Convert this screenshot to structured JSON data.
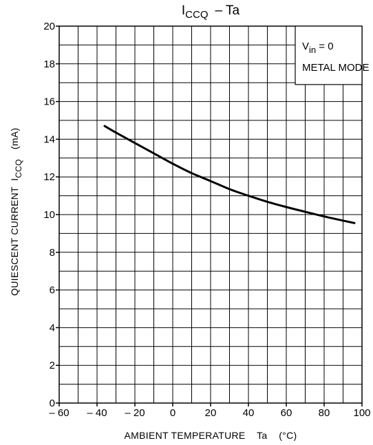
{
  "chart_data": {
    "type": "line",
    "title": "ICCQ – Ta",
    "title_main": "I",
    "title_sub": "CCQ",
    "title_rest": "– Ta",
    "xlabel": "AMBIENT TEMPERATURE    Ta    (°C)",
    "ylabel_prefix": "QUIESCENT CURRENT  I",
    "ylabel_sub": "CCQ",
    "ylabel_suffix": "(mA)",
    "xlim": [
      -60,
      100
    ],
    "ylim": [
      0,
      20
    ],
    "grid": true,
    "x_ticks": [
      "– 60",
      "– 40",
      "– 20",
      "0",
      "20",
      "40",
      "60",
      "80",
      "100"
    ],
    "x_tick_values": [
      -60,
      -40,
      -20,
      0,
      20,
      40,
      60,
      80,
      100
    ],
    "y_ticks": [
      "0",
      "2",
      "4",
      "6",
      "8",
      "10",
      "12",
      "14",
      "16",
      "18",
      "20"
    ],
    "y_tick_values": [
      0,
      2,
      4,
      6,
      8,
      10,
      12,
      14,
      16,
      18,
      20
    ],
    "annotations": {
      "vin_main": "V",
      "vin_sub": "in",
      "vin_rest": " = 0",
      "mode": "METAL MODE"
    },
    "series": [
      {
        "x": [
          -36,
          -30,
          -20,
          -10,
          0,
          10,
          20,
          30,
          40,
          50,
          60,
          70,
          80,
          90,
          96
        ],
        "y": [
          14.7,
          14.35,
          13.8,
          13.25,
          12.7,
          12.2,
          11.78,
          11.35,
          11.0,
          10.68,
          10.4,
          10.15,
          9.9,
          9.68,
          9.55
        ]
      }
    ]
  }
}
